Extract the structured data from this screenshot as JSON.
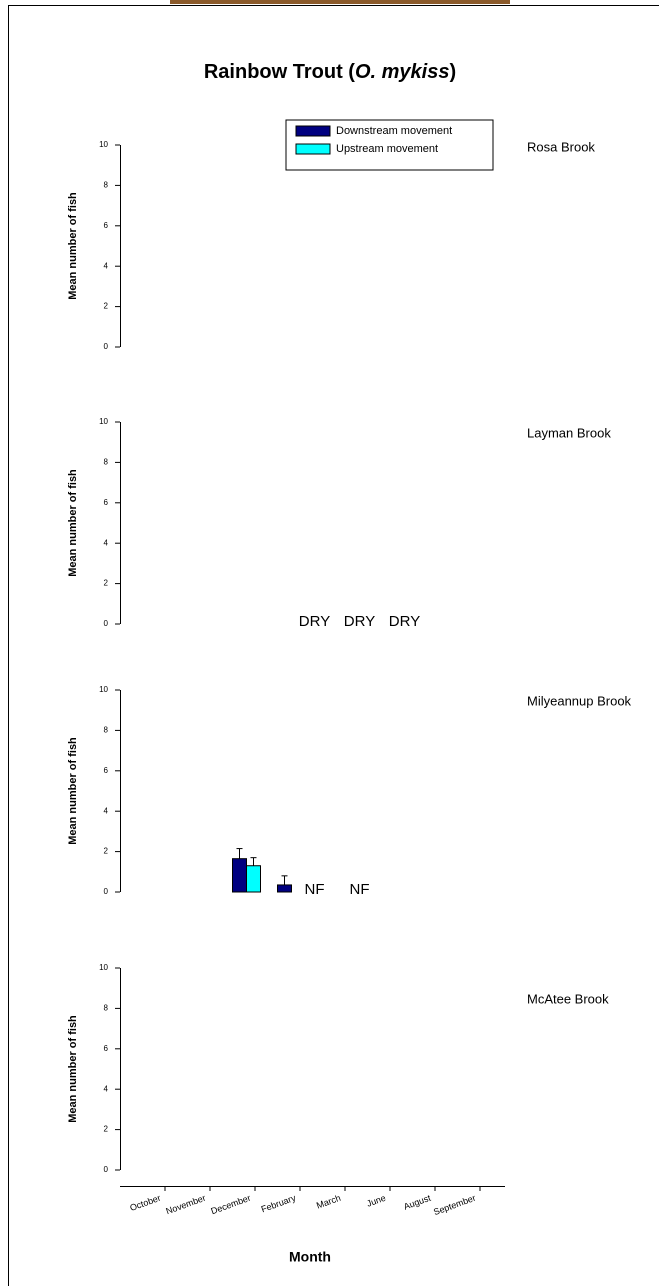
{
  "title_parts": [
    "Rainbow Trout (",
    "O. mykiss",
    ")"
  ],
  "chart_data": [
    {
      "type": "bar",
      "title": "Rosa Brook",
      "ylabel": "Mean number of fish",
      "ylim": [
        0,
        10
      ],
      "yticks": [
        0,
        2,
        4,
        6,
        8,
        10
      ],
      "legend": "top-right",
      "series": [
        {
          "name": "Downstream movement",
          "color": "#000080",
          "values": [
            null,
            null,
            null,
            null,
            null,
            null,
            null,
            null
          ]
        },
        {
          "name": "Upstream movement",
          "color": "#00ffff",
          "values": [
            null,
            null,
            null,
            null,
            null,
            null,
            null,
            null
          ]
        }
      ]
    },
    {
      "type": "bar",
      "title": "Layman Brook",
      "ylabel": "Mean number of fish",
      "ylim": [
        0,
        10
      ],
      "yticks": [
        0,
        2,
        4,
        6,
        8,
        10
      ],
      "series": [
        {
          "values": [
            null,
            null,
            null,
            null,
            null,
            null,
            null,
            null
          ]
        },
        {
          "values": [
            null,
            null,
            null,
            null,
            null,
            null,
            null,
            null
          ]
        }
      ],
      "annotations": [
        {
          "text": "DRY",
          "x": "March"
        },
        {
          "text": "DRY",
          "x": "June"
        },
        {
          "text": "DRY",
          "x": "August"
        }
      ]
    },
    {
      "type": "bar",
      "title": "Milyeannup Brook",
      "ylabel": "Mean number of fish",
      "ylim": [
        0,
        10
      ],
      "yticks": [
        0,
        2,
        4,
        6,
        8,
        10
      ],
      "series": [
        {
          "values": [
            null,
            null,
            1.65,
            0.35,
            null,
            null,
            null,
            null
          ],
          "errors": [
            null,
            null,
            0.5,
            0.45,
            null,
            null,
            null,
            null
          ]
        },
        {
          "values": [
            null,
            null,
            1.3,
            null,
            null,
            null,
            null,
            null
          ],
          "errors": [
            null,
            null,
            0.4,
            null,
            null,
            null,
            null,
            null
          ]
        }
      ],
      "annotations": [
        {
          "text": "NF",
          "x": "March"
        },
        {
          "text": "NF",
          "x": "June"
        }
      ]
    },
    {
      "type": "bar",
      "title": "McAtee Brook",
      "ylabel": "Mean number of fish",
      "xlabel": "Month",
      "categories": [
        "October",
        "November",
        "December",
        "February",
        "March",
        "June",
        "August",
        "September"
      ],
      "ylim": [
        0,
        10
      ],
      "yticks": [
        0,
        2,
        4,
        6,
        8,
        10
      ],
      "series": [
        {
          "values": [
            null,
            null,
            null,
            null,
            null,
            null,
            null,
            null
          ]
        },
        {
          "values": [
            null,
            null,
            null,
            null,
            null,
            null,
            null,
            null
          ]
        }
      ]
    }
  ]
}
